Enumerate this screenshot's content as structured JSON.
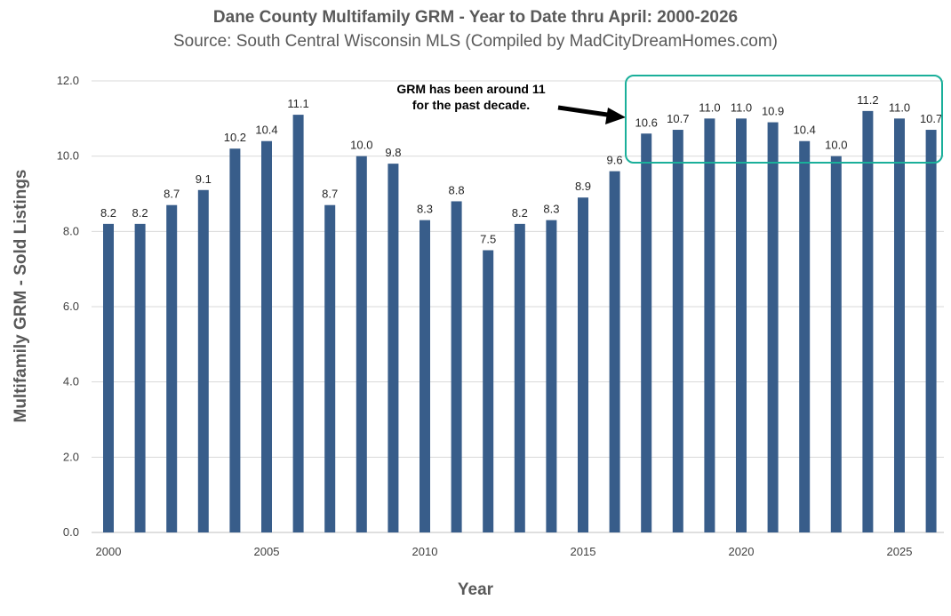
{
  "chart_data": {
    "type": "bar",
    "title": "Dane County Multifamily GRM - Year to Date thru April: 2000-2026",
    "subtitle": "Source: South Central Wisconsin MLS (Compiled by MadCityDreamHomes.com)",
    "xlabel": "Year",
    "ylabel": "Multifamily GRM - Sold Listings",
    "ylim": [
      0,
      12
    ],
    "yticks": [
      "0.0",
      "2.0",
      "4.0",
      "6.0",
      "8.0",
      "10.0",
      "12.0"
    ],
    "xticks": [
      "2000",
      "2005",
      "2010",
      "2015",
      "2020",
      "2025"
    ],
    "grid": true,
    "bar_color": "#385d8a",
    "highlight_color": "#1aaf9a",
    "categories": [
      2000,
      2001,
      2002,
      2003,
      2004,
      2005,
      2006,
      2007,
      2008,
      2009,
      2010,
      2011,
      2012,
      2013,
      2014,
      2015,
      2016,
      2017,
      2018,
      2019,
      2020,
      2021,
      2022,
      2023,
      2024,
      2025,
      2026
    ],
    "values": [
      8.2,
      8.2,
      8.7,
      9.1,
      10.2,
      10.4,
      11.1,
      8.7,
      10.0,
      9.8,
      8.3,
      8.8,
      7.5,
      8.2,
      8.3,
      8.9,
      9.6,
      10.6,
      10.7,
      11.0,
      11.0,
      10.9,
      10.4,
      10.0,
      11.2,
      11.0,
      10.7
    ],
    "labels": [
      "8.2",
      "8.2",
      "8.7",
      "9.1",
      "10.2",
      "10.4",
      "11.1",
      "8.7",
      "10.0",
      "9.8",
      "8.3",
      "8.8",
      "7.5",
      "8.2",
      "8.3",
      "8.9",
      "9.6",
      "10.6",
      "10.7",
      "11.0",
      "11.0",
      "10.9",
      "10.4",
      "10.0",
      "11.2",
      "11.0",
      "10.7"
    ],
    "annotation": {
      "line1": "GRM has been around 11",
      "line2": "for the past decade.",
      "highlight_range": [
        2017,
        2026
      ]
    }
  }
}
